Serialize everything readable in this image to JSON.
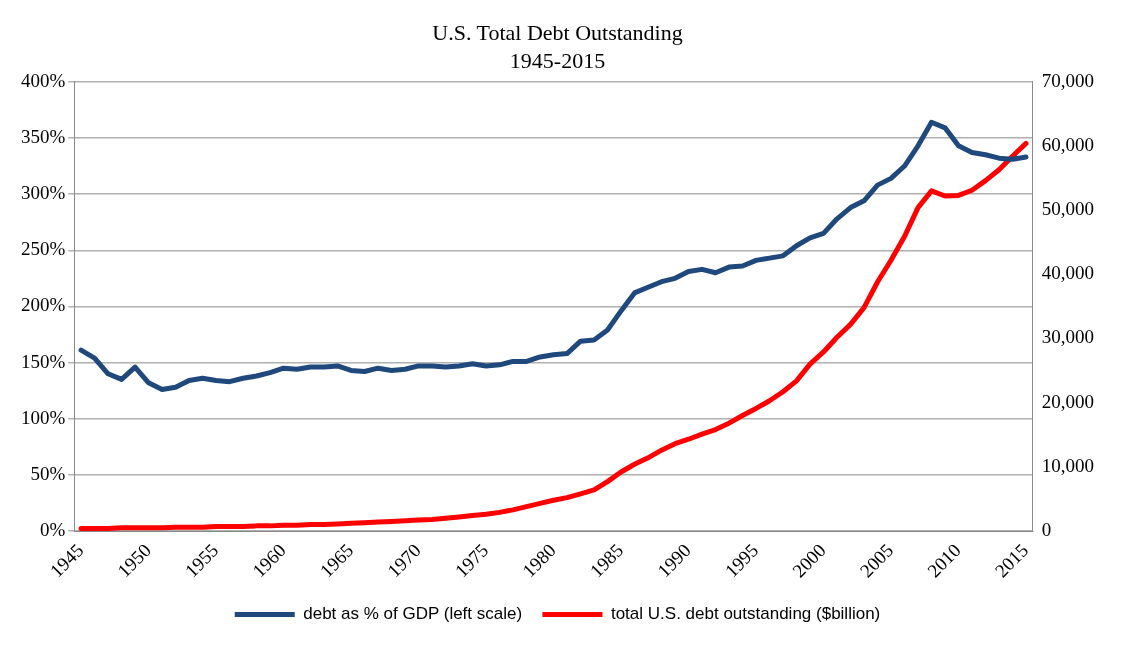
{
  "chart_data": {
    "type": "line",
    "title": "U.S. Total Debt Outstanding",
    "subtitle": "1945-2015",
    "x": [
      1945,
      1946,
      1947,
      1948,
      1949,
      1950,
      1951,
      1952,
      1953,
      1954,
      1955,
      1956,
      1957,
      1958,
      1959,
      1960,
      1961,
      1962,
      1963,
      1964,
      1965,
      1966,
      1967,
      1968,
      1969,
      1970,
      1971,
      1972,
      1973,
      1974,
      1975,
      1976,
      1977,
      1978,
      1979,
      1980,
      1981,
      1982,
      1983,
      1984,
      1985,
      1986,
      1987,
      1988,
      1989,
      1990,
      1991,
      1992,
      1993,
      1994,
      1995,
      1996,
      1997,
      1998,
      1999,
      2000,
      2001,
      2002,
      2003,
      2004,
      2005,
      2006,
      2007,
      2008,
      2009,
      2010,
      2011,
      2012,
      2013,
      2014,
      2015
    ],
    "xlim": [
      1944.5,
      2015.5
    ],
    "xticks": [
      1945,
      1950,
      1955,
      1960,
      1965,
      1970,
      1975,
      1980,
      1985,
      1990,
      1995,
      2000,
      2005,
      2010,
      2015
    ],
    "ylim": [
      0,
      400
    ],
    "yticks": [
      {
        "value": 0,
        "label": "0%"
      },
      {
        "value": 50,
        "label": "50%"
      },
      {
        "value": 100,
        "label": "100%"
      },
      {
        "value": 150,
        "label": "150%"
      },
      {
        "value": 200,
        "label": "200%"
      },
      {
        "value": 250,
        "label": "250%"
      },
      {
        "value": 300,
        "label": "300%"
      },
      {
        "value": 350,
        "label": "350%"
      },
      {
        "value": 400,
        "label": "400%"
      }
    ],
    "y2lim": [
      0,
      70000
    ],
    "y2ticks": [
      0,
      {
        "value": 10000,
        "label": "10,000"
      },
      {
        "value": 20000,
        "label": "20,000"
      },
      {
        "value": 30000,
        "label": "30,000"
      },
      {
        "value": 40000,
        "label": "40,000"
      },
      {
        "value": 50000,
        "label": "50,000"
      },
      {
        "value": 60000,
        "label": "60,000"
      },
      {
        "value": 70000,
        "label": "70,000"
      }
    ],
    "grid": "y",
    "legend": "bottom",
    "marker": "none",
    "line_style": "solid",
    "series": [
      {
        "name": "debt as % of GDP (left scale)",
        "color": "#1f497d",
        "values": [
          161,
          154,
          140,
          135,
          146,
          132,
          126,
          128,
          134,
          136,
          134,
          133,
          136,
          138,
          141,
          145,
          144,
          146,
          146,
          147,
          143,
          142,
          145,
          143,
          144,
          147,
          147,
          146,
          147,
          149,
          147,
          148,
          151,
          151,
          155,
          157,
          158,
          169,
          170,
          179,
          196,
          212,
          217,
          222,
          225,
          231,
          233,
          230,
          235,
          236,
          241,
          243,
          245,
          254,
          261,
          265,
          278,
          288,
          294,
          308,
          314,
          325,
          343,
          364,
          359,
          343,
          337,
          335,
          332,
          331,
          333
        ]
      },
      {
        "name": "total U.S. debt outstanding ($billion)",
        "color": "#ff0000",
        "axis": "y2",
        "values": [
          400,
          400,
          400,
          500,
          500,
          500,
          500,
          600,
          600,
          600,
          700,
          700,
          700,
          800,
          800,
          900,
          900,
          1000,
          1000,
          1100,
          1200,
          1300,
          1400,
          1500,
          1600,
          1700,
          1800,
          2000,
          2200,
          2400,
          2600,
          2900,
          3300,
          3800,
          4300,
          4800,
          5200,
          5800,
          6400,
          7700,
          9200,
          10400,
          11400,
          12600,
          13600,
          14300,
          15100,
          15800,
          16800,
          18000,
          19100,
          20300,
          21700,
          23400,
          26000,
          27900,
          30200,
          32200,
          34800,
          38800,
          42200,
          45900,
          50400,
          53000,
          52200,
          52300,
          53100,
          54600,
          56300,
          58400,
          60400
        ]
      }
    ]
  }
}
